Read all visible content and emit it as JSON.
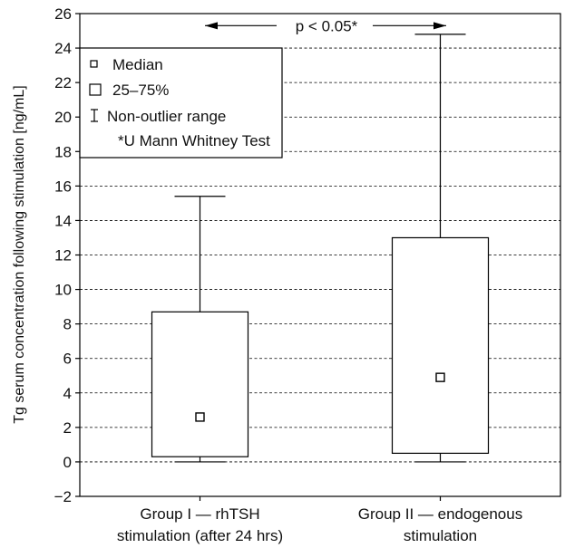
{
  "chart_data": {
    "type": "box",
    "title": "",
    "xlabel": "",
    "ylabel": "Tg serum concentration following stimulation [ng/mL]",
    "ylim": [
      -2,
      26
    ],
    "yticks": [
      -2,
      0,
      2,
      4,
      6,
      8,
      10,
      12,
      14,
      16,
      18,
      20,
      22,
      24,
      26
    ],
    "ytick_labels": [
      "−2",
      "0",
      "2",
      "4",
      "6",
      "8",
      "10",
      "12",
      "14",
      "16",
      "18",
      "20",
      "22",
      "24",
      "26"
    ],
    "grid": "horizontal dashed",
    "legend_position": "top-left",
    "categories": [
      [
        "Group I — rhTSH",
        "stimulation (after 24 hrs)"
      ],
      [
        "Group II — endogenous",
        "stimulation"
      ]
    ],
    "groups": [
      {
        "median": 2.6,
        "q1": 0.3,
        "q3": 8.7,
        "min": 0.0,
        "max": 15.4
      },
      {
        "median": 4.9,
        "q1": 0.5,
        "q3": 13.0,
        "min": 0.0,
        "max": 24.8
      }
    ],
    "legend": {
      "entries": [
        {
          "symbol": "small-square",
          "label": "Median"
        },
        {
          "symbol": "large-square",
          "label": "25–75%"
        },
        {
          "symbol": "whisker",
          "label": "Non-outlier range"
        }
      ],
      "note": "*U Mann Whitney Test"
    },
    "annotation": {
      "text": "p < 0.05*",
      "y": 25.3
    }
  }
}
